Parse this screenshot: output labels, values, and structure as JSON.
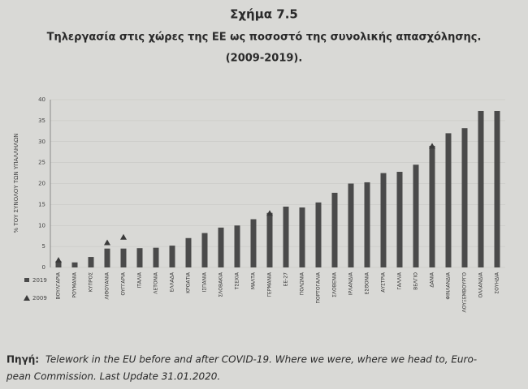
{
  "chart_data": {
    "type": "bar",
    "title": "Σχήμα 7.5",
    "subtitle": [
      "Τηλεργασία στις χώρες της ΕΕ ως ποσοστό της συνολικής απασχόλησης.",
      "(2009-2019)."
    ],
    "y_label": "% ΤΟΥ ΣΥΝΟΛΟΥ ΤΩΝ ΥΠΑΛΛΗΛΩΝ",
    "categories": [
      "ΒΟΥΛΓΑΡΙΑ",
      "ΡΟΥΜΑΝΙΑ",
      "ΚΥΠΡΟΣ",
      "ΛΙΘΟΥΑΝΙΑ",
      "ΟΥΓΓΑΡΙΑ",
      "ΙΤΑΛΙΑ",
      "ΛΕΤΟΝΙΑ",
      "ΕΛΛΑΔΑ",
      "ΚΡΟΑΤΙΑ",
      "ΙΣΠΑΝΙΑ",
      "ΣΛΟΒΑΚΙΑ",
      "ΤΣΕΧΙΑ",
      "ΜΑΛΤΑ",
      "ΓΕΡΜΑΝΙΑ",
      "ΕΕ-27",
      "ΠΟΛΩΝΙΑ",
      "ΠΟΡΤΟΓΑΛΙΑ",
      "ΣΛΟΒΕΝΙΑ",
      "ΙΡΛΑΝΔΙΑ",
      "ΕΣΘΟΝΙΑ",
      "ΑΥΣΤΡΙΑ",
      "ΓΑΛΛΙΑ",
      "ΒΕΛΓΙΟ",
      "ΔΑΝΙΑ",
      "ΦΙΝΛΑΝΔΙΑ",
      "ΛΟΥΞΕΜΒΟΥΡΓΟ",
      "ΟΛΛΑΝΔΙΑ",
      "ΣΟΥΗΔΙΑ"
    ],
    "series": [
      {
        "name": "2019",
        "color": "#4a4a4a",
        "values": [
          1.5,
          1.2,
          2.5,
          4.5,
          4.5,
          4.6,
          4.7,
          5.2,
          7,
          8.2,
          9.5,
          10,
          11.5,
          13,
          14.5,
          14.3,
          15.5,
          17.8,
          20,
          20.3,
          22.5,
          22.8,
          24.5,
          29,
          32,
          33.2,
          37.3,
          37.3
        ]
      },
      {
        "name": "2009",
        "color": "#3a3a3a",
        "values": [
          1.8,
          null,
          null,
          6,
          7.3,
          null,
          null,
          null,
          null,
          null,
          null,
          null,
          null,
          13,
          null,
          null,
          null,
          null,
          null,
          null,
          null,
          null,
          null,
          29,
          null,
          null,
          null,
          null
        ]
      }
    ],
    "ylim": [
      0,
      40
    ],
    "yticks": [
      0,
      5,
      10,
      15,
      20,
      25,
      30,
      35,
      40
    ],
    "grid": true,
    "source_label": "Πηγή:",
    "source": [
      "Telework in the EU before and after COVID-19. Where we were, where we head to, Euro-",
      "pean Commission. Last Update 31.01.2020."
    ]
  }
}
